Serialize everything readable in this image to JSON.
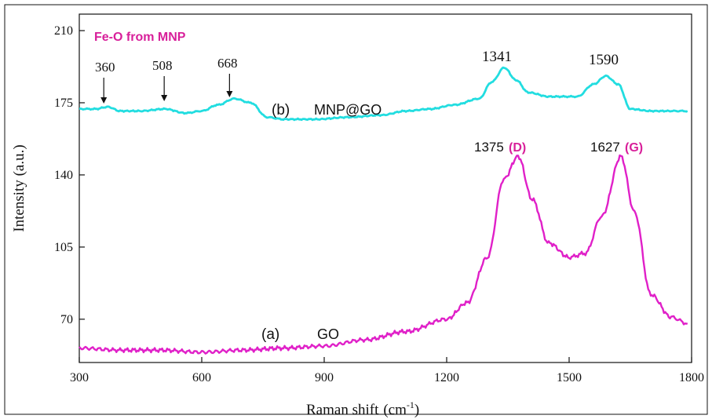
{
  "chart_data": {
    "type": "line",
    "xlabel": "Raman shift",
    "xlabel_unit": "(cm",
    "xlabel_unit_sup": "-1",
    "xlabel_unit_close": ")",
    "ylabel": "Intensity (a.u.)",
    "xlim": [
      300,
      1800
    ],
    "ylim": [
      49,
      218
    ],
    "x_ticks": [
      300,
      600,
      900,
      1200,
      1500,
      1800
    ],
    "y_ticks": [
      70,
      105,
      140,
      175,
      210
    ],
    "grid": false,
    "legend": "none",
    "series": [
      {
        "label": "(a)",
        "name_text": "GO",
        "color": "#e020c8",
        "x": [
          300,
          400,
          500,
          600,
          700,
          800,
          900,
          1000,
          1100,
          1200,
          1250,
          1300,
          1340,
          1375,
          1410,
          1450,
          1500,
          1540,
          1580,
          1627,
          1660,
          1700,
          1750,
          1790
        ],
        "y": [
          56,
          55,
          55,
          54,
          55,
          56,
          57,
          60,
          64,
          70,
          78,
          100,
          138,
          149,
          128,
          107,
          100,
          102,
          120,
          149,
          122,
          82,
          71,
          68
        ]
      },
      {
        "label": "(b)",
        "name_text": "MNP@GO",
        "color": "#22dde0",
        "x": [
          300,
          340,
          370,
          400,
          450,
          510,
          560,
          600,
          640,
          680,
          720,
          760,
          800,
          880,
          960,
          1040,
          1100,
          1160,
          1220,
          1280,
          1310,
          1341,
          1370,
          1400,
          1450,
          1480,
          1520,
          1560,
          1590,
          1620,
          1650,
          1700,
          1750,
          1790
        ],
        "y": [
          172,
          172,
          173,
          171,
          171,
          172,
          170,
          171,
          174,
          177,
          175,
          168,
          167,
          167,
          168,
          169,
          171,
          172,
          174,
          177,
          185,
          192,
          186,
          180,
          178,
          178,
          178,
          184,
          188,
          184,
          172,
          171,
          171,
          171
        ]
      }
    ],
    "annotations": {
      "fe_o_label": "Fe-O from MNP",
      "peaks_b": [
        "360",
        "508",
        "668",
        "1341",
        "1590"
      ],
      "peak_a_d": "1375",
      "peak_a_d_tag": "(D)",
      "peak_a_g": "1627",
      "peak_a_g_tag": "(G)"
    },
    "colors": {
      "annotation_magenta": "#d81f9a",
      "axis": "#111111"
    }
  }
}
